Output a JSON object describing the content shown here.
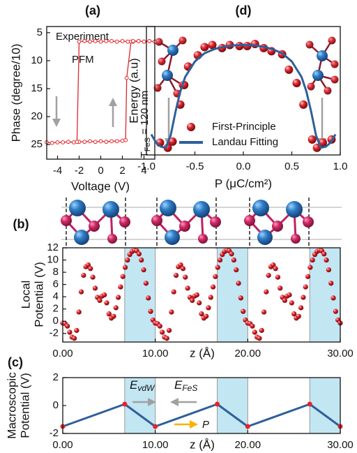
{
  "chart_data": [
    {
      "type": "line",
      "title": "(a)",
      "xlabel": "Voltage (V)",
      "ylabel": "Phase (degree/10)",
      "xlim": [
        -5,
        5
      ],
      "ylim": [
        27.6,
        3.9
      ],
      "xticks": [
        -4,
        -2,
        0,
        2,
        4
      ],
      "yticks": [
        5,
        10,
        15,
        20,
        25
      ],
      "annotations": [
        {
          "text": "Experiment"
        },
        {
          "text": "PFM"
        },
        {
          "text": "T",
          "sub": "FeS",
          "tail": " = 120 nm"
        }
      ],
      "series": [
        {
          "color": "#e3242b",
          "mode": "lines+markers",
          "marker": "open",
          "x": [
            -5,
            -4.5,
            -4,
            -3.5,
            -3,
            -2.5,
            -2,
            -1.5,
            -1,
            -0.5,
            0,
            0.5,
            1,
            1.5,
            2,
            2.3,
            2.4,
            2.8,
            3,
            3.5,
            4,
            4.5,
            5,
            4.5,
            4,
            3.5,
            3,
            2.5,
            2,
            1.5,
            1,
            0.5,
            0,
            -0.5,
            -1,
            -1.5,
            -2,
            -2.2
          ],
          "values": [
            24.6,
            24.7,
            24.6,
            24.6,
            24.5,
            24.6,
            24.5,
            24.5,
            24.4,
            24.5,
            24.4,
            24.5,
            24.4,
            24.4,
            24.3,
            24.2,
            13.1,
            6.6,
            6.6,
            6.5,
            6.6,
            6.5,
            6.6,
            6.5,
            6.6,
            6.5,
            6.5,
            6.6,
            6.5,
            6.6,
            6.5,
            6.5,
            6.6,
            6.5,
            6.6,
            6.5,
            6.6,
            24.5
          ]
        }
      ]
    },
    {
      "type": "scatter",
      "title": "(d)",
      "xlabel": "P (μC/cm²)",
      "ylabel": "Energy (a.u)",
      "xlim": [
        -1,
        1
      ],
      "ylim": [
        -0.07,
        1.18
      ],
      "xticks": [
        {
          "value": -1,
          "label": "-1.0"
        },
        -0.5,
        {
          "value": 0,
          "label": "0.0"
        },
        0.5,
        {
          "value": 1,
          "label": "1.0"
        }
      ],
      "legend": "lower center",
      "series": [
        {
          "name": "First-Principle",
          "color": "#e3242b",
          "mode": "markers",
          "marker": "sphere",
          "x": [
            -0.86,
            -0.78,
            -0.73,
            -0.65,
            -0.61,
            -0.57,
            -0.47,
            -0.4,
            -0.32,
            -0.22,
            -0.14,
            -0.04,
            0.04,
            0.12,
            0.21,
            0.29,
            0.4,
            0.47,
            0.55,
            0.62,
            0.71,
            0.76,
            0.82,
            0.91
          ],
          "values": [
            0.05,
            0,
            0.06,
            0.42,
            0.61,
            0.79,
            0.9,
            0.98,
            1.0,
            0.97,
            1.0,
            0.99,
            0.99,
            1.01,
            0.97,
            0.94,
            0.91,
            0.76,
            0.63,
            0.42,
            0.08,
            0,
            0.05,
            0.08
          ]
        },
        {
          "name": "Landau Fitting",
          "color": "#2e5f9a",
          "mode": "lines",
          "x": [
            -0.95,
            -0.9,
            -0.85,
            -0.8,
            -0.75,
            -0.7,
            -0.65,
            -0.6,
            -0.5,
            -0.4,
            -0.3,
            -0.2,
            -0.1,
            0,
            0.1,
            0.2,
            0.3,
            0.4,
            0.5,
            0.6,
            0.65,
            0.7,
            0.75,
            0.8,
            0.85,
            0.9,
            0.95
          ],
          "values": [
            0.13,
            0.05,
            0.01,
            0,
            0.12,
            0.35,
            0.55,
            0.69,
            0.84,
            0.92,
            0.96,
            0.985,
            0.997,
            1.0,
            0.997,
            0.985,
            0.96,
            0.92,
            0.84,
            0.69,
            0.55,
            0.35,
            0.12,
            0,
            0.01,
            0.05,
            0.13
          ]
        }
      ]
    },
    {
      "type": "scatter",
      "title": "(b)",
      "xlabel": "z (Å)",
      "ylabel": [
        "Local",
        "Potential (V)"
      ],
      "xlim": [
        0,
        30
      ],
      "ylim": [
        -3.4,
        12
      ],
      "xticks": [
        {
          "value": 0,
          "label": "0.00"
        },
        {
          "value": 10,
          "label": "10.00"
        },
        {
          "value": 20,
          "label": "20.00"
        },
        {
          "value": 30,
          "label": "30.00"
        }
      ],
      "yticks": [
        -2,
        0,
        2,
        4,
        6,
        8,
        10,
        12
      ],
      "shaded": [
        [
          6.7,
          10
        ],
        [
          16.7,
          20
        ],
        [
          26.7,
          30
        ]
      ],
      "series": [
        {
          "color": "#e3242b",
          "mode": "markers",
          "marker": "sphere",
          "x": [
            0,
            0.25,
            0.5,
            0.75,
            1,
            1.25,
            1.5,
            1.75,
            2,
            2.25,
            2.5,
            2.75,
            3,
            3.25,
            3.5,
            3.75,
            4,
            4.25,
            4.5,
            4.75,
            5,
            5.25,
            5.5,
            5.75,
            6,
            6.25,
            6.5,
            6.75,
            7,
            7.25,
            7.5,
            7.75,
            8,
            8.25,
            8.5,
            8.75,
            9,
            9.25,
            9.5,
            9.75,
            10,
            10.25,
            10.5,
            10.75,
            11,
            11.25,
            11.5,
            11.75,
            12,
            12.25,
            12.5,
            12.75,
            13,
            13.25,
            13.5,
            13.75,
            14,
            14.25,
            14.5,
            14.75,
            15,
            15.25,
            15.5,
            15.75,
            16,
            16.25,
            16.5,
            16.75,
            17,
            17.25,
            17.5,
            17.75,
            18,
            18.25,
            18.5,
            18.75,
            19,
            19.25,
            19.5,
            19.75,
            20,
            20.25,
            20.5,
            20.75,
            21,
            21.25,
            21.5,
            21.75,
            22,
            22.25,
            22.5,
            22.75,
            23,
            23.25,
            23.5,
            23.75,
            24,
            24.25,
            24.5,
            24.75,
            25,
            25.25,
            25.5,
            25.75,
            26,
            26.25,
            26.5,
            26.75,
            27,
            27.25,
            27.5,
            27.75,
            28,
            28.25,
            28.5,
            28.75,
            29,
            29.25,
            29.5,
            29.75,
            30
          ],
          "values": [
            -0.3,
            -0.4,
            -0.8,
            -1.8,
            -2.6,
            -2.8,
            -1.5,
            1.5,
            4.8,
            7.5,
            8.9,
            9.2,
            8.6,
            7.2,
            5.4,
            3.9,
            3.4,
            4.1,
            4.3,
            3.0,
            1.2,
            0.5,
            0.8,
            2.2,
            3.9,
            5.6,
            7.3,
            8.8,
            10.0,
            10.9,
            11.4,
            11.6,
            11.5,
            11.0,
            10.0,
            8.4,
            6.2,
            3.8,
            1.6,
            0.2,
            -0.3,
            -0.4,
            -0.8,
            -1.8,
            -2.6,
            -2.8,
            -1.5,
            1.5,
            4.8,
            7.5,
            8.9,
            9.2,
            8.6,
            7.2,
            5.4,
            3.9,
            3.4,
            4.1,
            4.3,
            3.0,
            1.2,
            0.5,
            0.8,
            2.2,
            3.9,
            5.6,
            7.3,
            8.8,
            10.0,
            10.9,
            11.4,
            11.6,
            11.5,
            11.0,
            10.0,
            8.4,
            6.2,
            3.8,
            1.6,
            0.2,
            -0.3,
            -0.4,
            -0.8,
            -1.8,
            -2.6,
            -2.8,
            -1.5,
            1.5,
            4.8,
            7.5,
            8.9,
            9.2,
            8.6,
            7.2,
            5.4,
            3.9,
            3.4,
            4.1,
            4.3,
            3.0,
            1.2,
            0.5,
            0.8,
            2.2,
            3.9,
            5.6,
            7.3,
            8.8,
            10.0,
            10.9,
            11.4,
            11.6,
            11.5,
            11.0,
            10.0,
            8.4,
            6.2,
            3.8,
            1.6,
            0.2,
            -0.3
          ]
        }
      ]
    },
    {
      "type": "line",
      "title": "(c)",
      "xlabel": "z (Å)",
      "ylabel": [
        "Macroscopic",
        "Potential (V)"
      ],
      "xlim": [
        0,
        30
      ],
      "ylim": [
        -2,
        2
      ],
      "xticks": [
        {
          "value": 0,
          "label": "0.00"
        },
        {
          "value": 10,
          "label": "10.00"
        },
        {
          "value": 20,
          "label": "20.00"
        },
        {
          "value": 30,
          "label": "30.00"
        }
      ],
      "yticks": [
        -2,
        0,
        2
      ],
      "shaded": [
        [
          6.7,
          10
        ],
        [
          16.7,
          20
        ],
        [
          26.7,
          30
        ]
      ],
      "annotations": [
        {
          "text": "E",
          "sub": "vdW"
        },
        {
          "text": "E",
          "sub": "FeS"
        },
        {
          "text": "P"
        }
      ],
      "series": [
        {
          "color": "#2e5f9a",
          "marker_color": "#e3242b",
          "mode": "lines+markers",
          "marker": "dot",
          "x": [
            0,
            6.7,
            10,
            16.7,
            20,
            26.7,
            30
          ],
          "values": [
            -1.5,
            0.1,
            -1.5,
            0.1,
            -1.5,
            0.1,
            -1.5
          ]
        }
      ]
    }
  ]
}
